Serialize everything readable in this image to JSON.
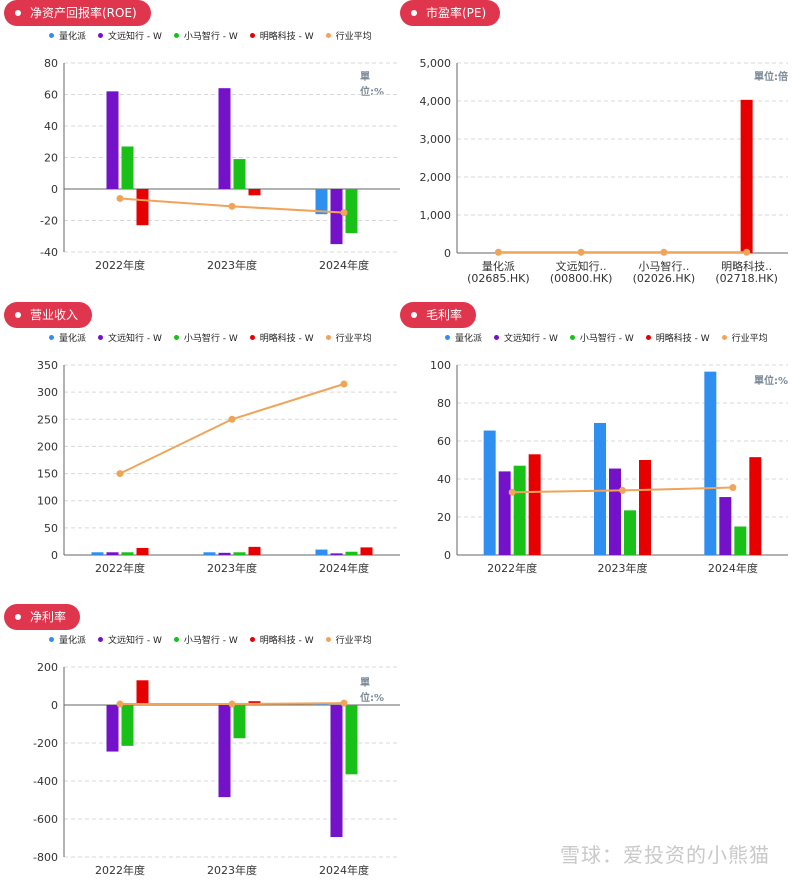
{
  "colors": {
    "quant": "#2f8ff0",
    "wenyuan": "#7312c9",
    "xiaoma": "#18c018",
    "minglue": "#e60000",
    "avg": "#f0a45a",
    "pill": "#e0364d"
  },
  "legend": [
    "量化派",
    "文远知行 - W",
    "小马智行 - W",
    "明略科技 - W",
    "行业平均"
  ],
  "watermark": "雪球：爱投资的小熊猫",
  "chart_data": [
    {
      "id": "roe",
      "type": "bar",
      "title": "净资产回报率(ROE)",
      "unit": "單位:%",
      "categories": [
        "2022年度",
        "2023年度",
        "2024年度"
      ],
      "ylim": [
        -40,
        80
      ],
      "yticks": [
        -40,
        -20,
        0,
        20,
        40,
        60,
        80
      ],
      "series": [
        {
          "name": "量化派",
          "values": [
            0,
            0,
            -16
          ]
        },
        {
          "name": "文远知行 - W",
          "values": [
            62,
            64,
            -35
          ]
        },
        {
          "name": "小马智行 - W",
          "values": [
            27,
            19,
            -28
          ]
        },
        {
          "name": "明略科技 - W",
          "values": [
            -23,
            -4,
            0
          ]
        }
      ],
      "avg": {
        "name": "行业平均",
        "values": [
          -6,
          -11,
          -15
        ]
      }
    },
    {
      "id": "pe",
      "type": "bar",
      "title": "市盈率(PE)",
      "unit": "單位:倍",
      "categories": [
        "量化派\n(02685.HK)",
        "文远知行..\n(00800.HK)",
        "小马智行..\n(02026.HK)",
        "明略科技..\n(02718.HK)"
      ],
      "ylim": [
        0,
        5000
      ],
      "yticks": [
        0,
        1000,
        2000,
        3000,
        4000,
        5000
      ],
      "thousands": true,
      "single": {
        "values": [
          0,
          0,
          0,
          4030
        ],
        "colors": [
          "#2f8ff0",
          "#7312c9",
          "#18c018",
          "#e60000"
        ]
      },
      "avg": {
        "name": "行业平均",
        "values": [
          20,
          20,
          20,
          20
        ]
      }
    },
    {
      "id": "rev",
      "type": "bar",
      "title": "营业收入",
      "categories": [
        "2022年度",
        "2023年度",
        "2024年度"
      ],
      "ylim": [
        0,
        350
      ],
      "yticks": [
        0,
        50,
        100,
        150,
        200,
        250,
        300,
        350
      ],
      "series": [
        {
          "name": "量化派",
          "values": [
            5,
            5,
            10
          ]
        },
        {
          "name": "文远知行 - W",
          "values": [
            5,
            4,
            3
          ]
        },
        {
          "name": "小马智行 - W",
          "values": [
            5,
            5,
            6
          ]
        },
        {
          "name": "明略科技 - W",
          "values": [
            13,
            15,
            14
          ]
        }
      ],
      "avg": {
        "name": "行业平均",
        "values": [
          150,
          250,
          315
        ]
      }
    },
    {
      "id": "gm",
      "type": "bar",
      "title": "毛利率",
      "unit": "單位:%",
      "categories": [
        "2022年度",
        "2023年度",
        "2024年度"
      ],
      "ylim": [
        0,
        100
      ],
      "yticks": [
        0,
        20,
        40,
        60,
        80,
        100
      ],
      "series": [
        {
          "name": "量化派",
          "values": [
            65.5,
            69.5,
            96.5
          ]
        },
        {
          "name": "文远知行 - W",
          "values": [
            44,
            45.5,
            30.5
          ]
        },
        {
          "name": "小马智行 - W",
          "values": [
            47,
            23.5,
            15
          ]
        },
        {
          "name": "明略科技 - W",
          "values": [
            53,
            50,
            51.5
          ]
        }
      ],
      "avg": {
        "name": "行业平均",
        "values": [
          33,
          34,
          35.5
        ]
      }
    },
    {
      "id": "nm",
      "type": "bar",
      "title": "净利率",
      "unit": "單位:%",
      "categories": [
        "2022年度",
        "2023年度",
        "2024年度"
      ],
      "ylim": [
        -800,
        200
      ],
      "yticks": [
        -800,
        -600,
        -400,
        -200,
        0,
        200
      ],
      "series": [
        {
          "name": "量化派",
          "values": [
            0,
            0,
            5
          ]
        },
        {
          "name": "文远知行 - W",
          "values": [
            -245,
            -485,
            -695
          ]
        },
        {
          "name": "小马智行 - W",
          "values": [
            -215,
            -175,
            -365
          ]
        },
        {
          "name": "明略科技 - W",
          "values": [
            130,
            20,
            0
          ]
        }
      ],
      "avg": {
        "name": "行业平均",
        "values": [
          5,
          5,
          10
        ]
      }
    }
  ]
}
